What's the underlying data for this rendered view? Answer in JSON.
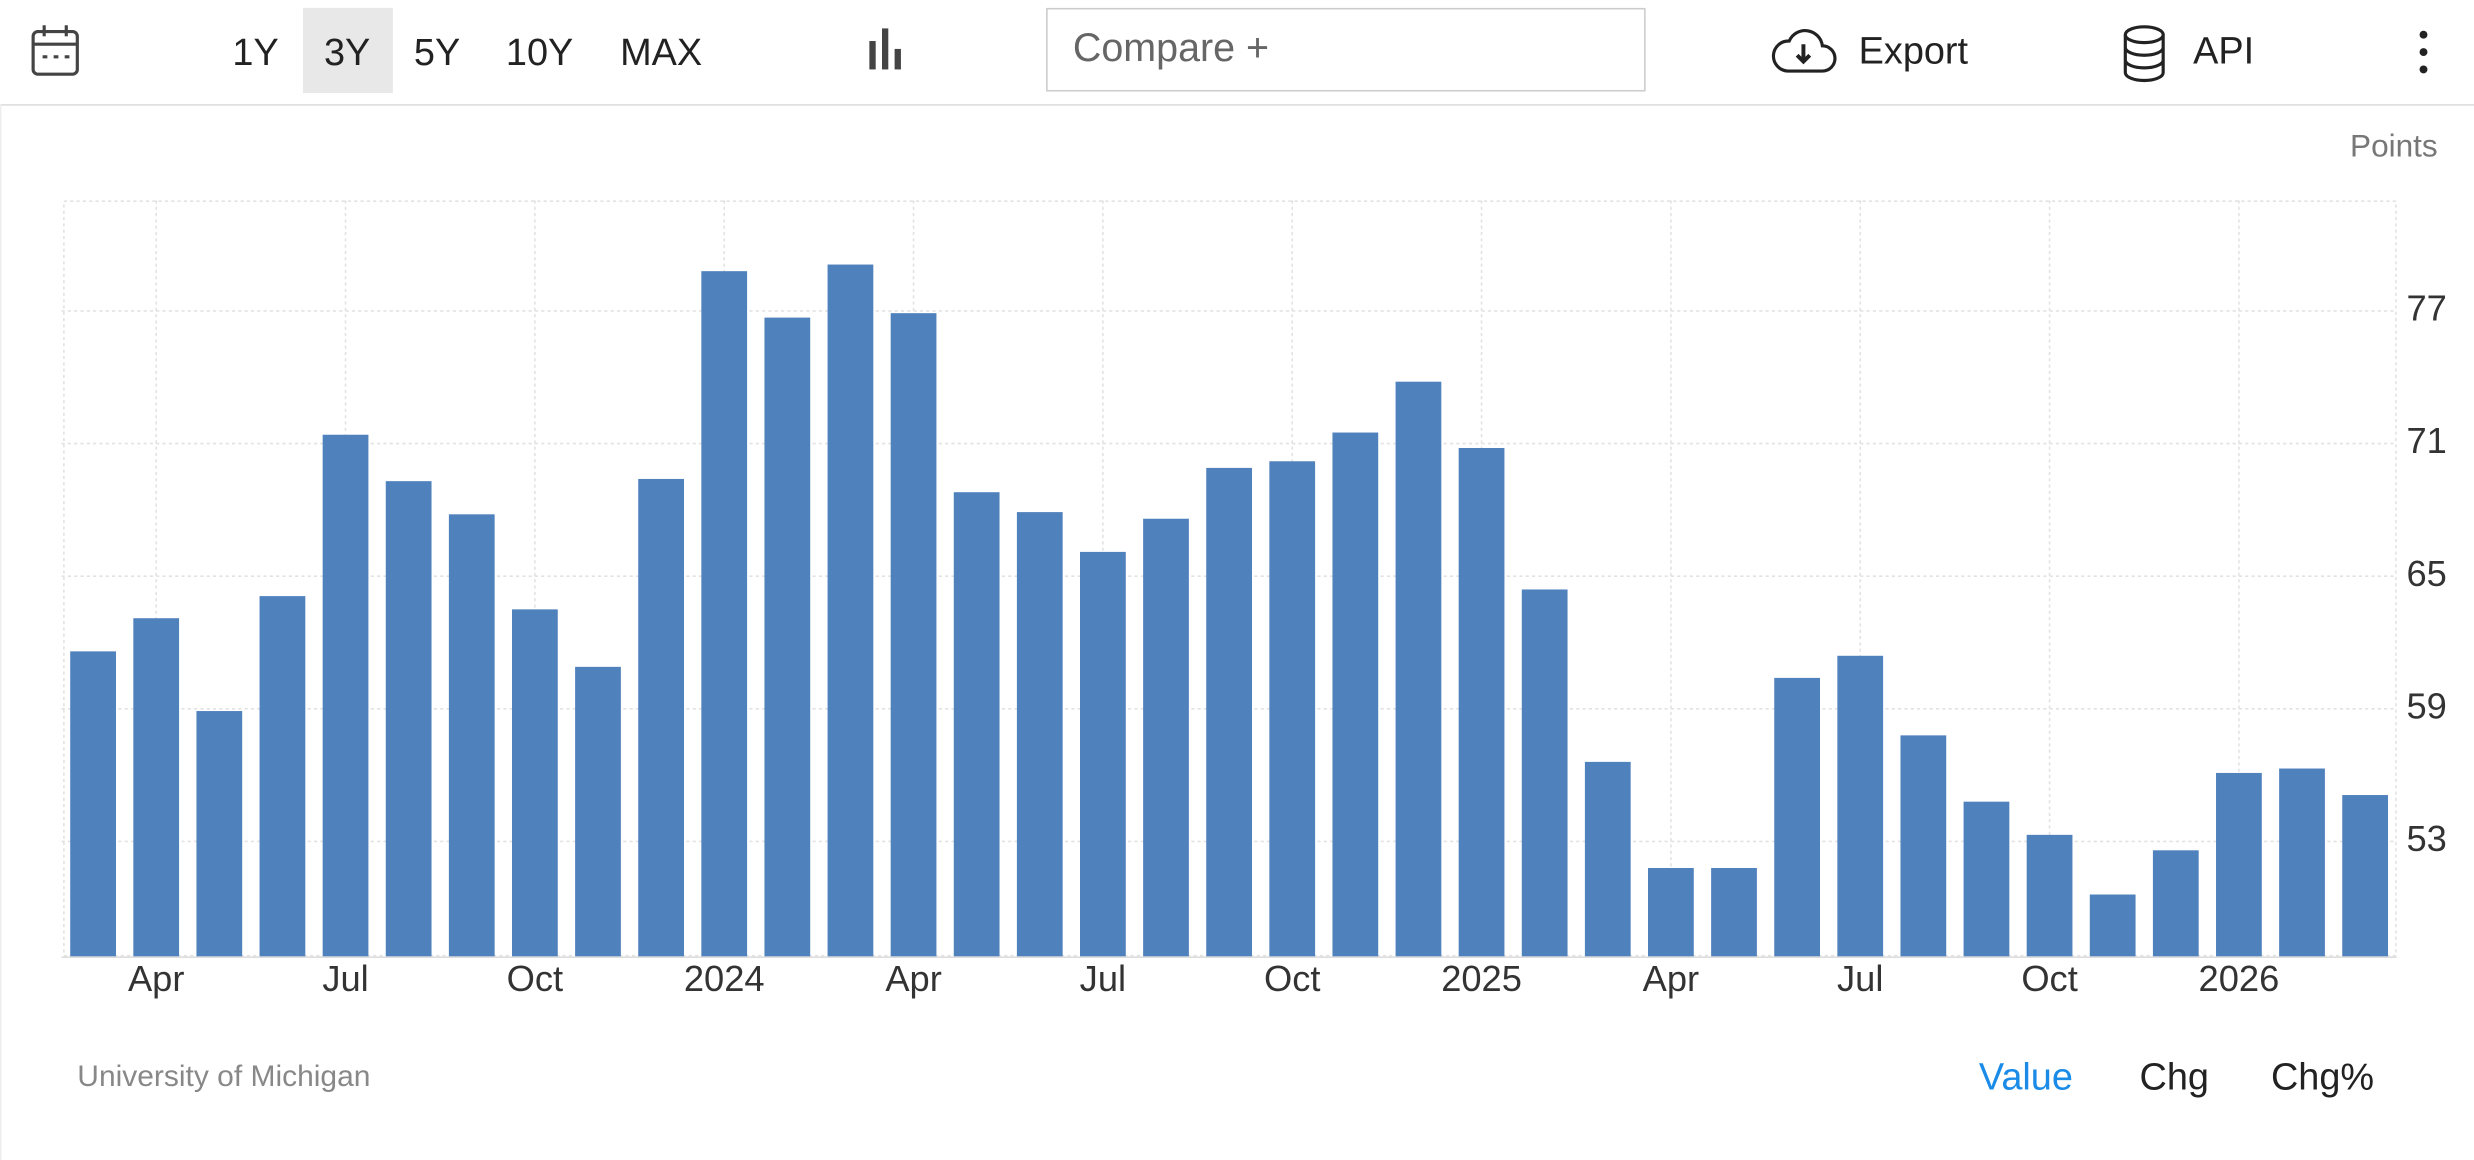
{
  "toolbar": {
    "ranges": [
      "1Y",
      "3Y",
      "5Y",
      "10Y",
      "MAX"
    ],
    "compare": "Compare +",
    "export": "Export",
    "api": "API"
  },
  "chart_data": {
    "type": "bar",
    "y_label": "Points",
    "source": "University of Michigan",
    "color": "#4f81bd",
    "categories": [
      null,
      "Apr",
      null,
      null,
      "Jul",
      null,
      null,
      "Oct",
      null,
      null,
      "2024",
      null,
      null,
      "Apr",
      null,
      null,
      "Jul",
      null,
      null,
      "Oct",
      null,
      null,
      "2025",
      null,
      null,
      "Apr",
      null,
      null,
      "Jul",
      null,
      null,
      "Oct",
      null,
      null,
      "2026",
      null,
      null
    ],
    "values": [
      61.6,
      63.1,
      58.9,
      64.1,
      71.4,
      69.3,
      67.8,
      63.5,
      60.9,
      69.4,
      78.8,
      76.7,
      79.1,
      76.9,
      68.8,
      67.9,
      66.1,
      67.6,
      69.9,
      70.2,
      71.5,
      73.8,
      70.8,
      64.4,
      56.6,
      51.8,
      51.8,
      60.4,
      61.4,
      57.8,
      54.8,
      53.3,
      50.6,
      52.6,
      56.1,
      56.3,
      55.1
    ],
    "ylim": [
      47.8,
      82
    ],
    "yticks": [
      53,
      59,
      65,
      71,
      77
    ],
    "grid": true
  },
  "footer": {
    "modes": [
      "Value",
      "Chg",
      "Chg%"
    ]
  }
}
